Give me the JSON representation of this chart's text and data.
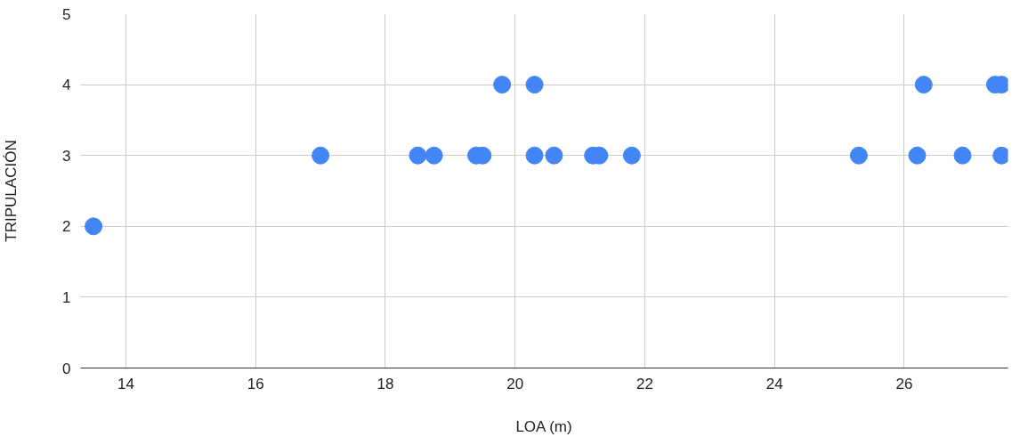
{
  "chart_data": {
    "type": "scatter",
    "xlabel": "LOA (m)",
    "ylabel": "TRIPULACIÓN",
    "series": [
      {
        "color": "#4285f4",
        "x": [
          13.5,
          17.0,
          18.5,
          18.75,
          19.4,
          19.5,
          19.8,
          20.3,
          20.3,
          20.6,
          21.2,
          21.3,
          21.8,
          25.3,
          26.2,
          26.3,
          26.9,
          27.4,
          27.5,
          27.5
        ],
        "values": [
          2,
          3,
          3,
          3,
          3,
          3,
          4,
          3,
          4,
          3,
          3,
          3,
          3,
          3,
          3,
          4,
          3,
          4,
          4,
          3
        ]
      }
    ],
    "xlim": [
      13.3,
      27.6
    ],
    "ylim": [
      0,
      5
    ],
    "xticks": [
      14,
      16,
      18,
      20,
      22,
      24,
      26
    ],
    "yticks": [
      0,
      1,
      2,
      3,
      4,
      5
    ],
    "grid": true,
    "marker": "circle"
  }
}
